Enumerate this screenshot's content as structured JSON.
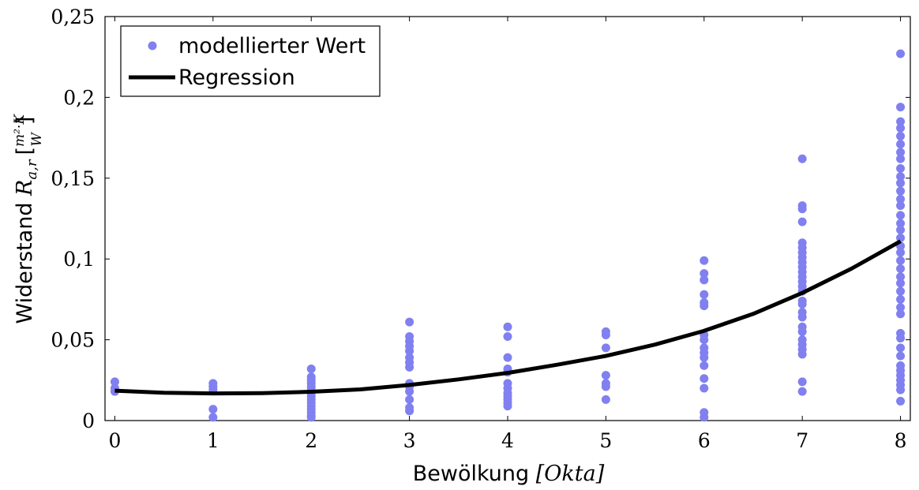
{
  "chart_data": {
    "type": "scatter",
    "xlabel": {
      "text": "Bewölkung ",
      "unit": "[Okta]"
    },
    "ylabel": {
      "text": "Widerstand ",
      "symbol": "R",
      "subscript": "a,r",
      "unit_num": "m²·K",
      "unit_den": "W"
    },
    "xlim": [
      -0.1,
      8.1
    ],
    "ylim": [
      0,
      0.25
    ],
    "x_ticks": [
      {
        "value": 0,
        "label": "0"
      },
      {
        "value": 1,
        "label": "1"
      },
      {
        "value": 2,
        "label": "2"
      },
      {
        "value": 3,
        "label": "3"
      },
      {
        "value": 4,
        "label": "4"
      },
      {
        "value": 5,
        "label": "5"
      },
      {
        "value": 6,
        "label": "6"
      },
      {
        "value": 7,
        "label": "7"
      },
      {
        "value": 8,
        "label": "8"
      }
    ],
    "y_ticks": [
      {
        "value": 0,
        "label": "0"
      },
      {
        "value": 0.05,
        "label": "0,05"
      },
      {
        "value": 0.1,
        "label": "0,1"
      },
      {
        "value": 0.15,
        "label": "0,15"
      },
      {
        "value": 0.2,
        "label": "0,2"
      },
      {
        "value": 0.25,
        "label": "0,25"
      }
    ],
    "grid": false,
    "legend_position": "top-left",
    "legend": [
      {
        "label": "modellierter Wert",
        "marker": "dot"
      },
      {
        "label": "Regression",
        "marker": "line"
      }
    ],
    "colors": {
      "points": "#8080f0",
      "regression": "#000000"
    },
    "series": [
      {
        "name": "modellierter Wert",
        "kind": "scatter",
        "points": [
          {
            "x": 0,
            "y": 0.024
          },
          {
            "x": 0,
            "y": 0.02
          },
          {
            "x": 0,
            "y": 0.018
          },
          {
            "x": 1,
            "y": 0.023
          },
          {
            "x": 1,
            "y": 0.021
          },
          {
            "x": 1,
            "y": 0.019
          },
          {
            "x": 1,
            "y": 0.007
          },
          {
            "x": 1,
            "y": 0.002
          },
          {
            "x": 2,
            "y": 0.032
          },
          {
            "x": 2,
            "y": 0.027
          },
          {
            "x": 2,
            "y": 0.025
          },
          {
            "x": 2,
            "y": 0.023
          },
          {
            "x": 2,
            "y": 0.021
          },
          {
            "x": 2,
            "y": 0.019
          },
          {
            "x": 2,
            "y": 0.017
          },
          {
            "x": 2,
            "y": 0.015
          },
          {
            "x": 2,
            "y": 0.013
          },
          {
            "x": 2,
            "y": 0.011
          },
          {
            "x": 2,
            "y": 0.009
          },
          {
            "x": 2,
            "y": 0.007
          },
          {
            "x": 2,
            "y": 0.005
          },
          {
            "x": 2,
            "y": 0.003
          },
          {
            "x": 2,
            "y": 0.002
          },
          {
            "x": 3,
            "y": 0.061
          },
          {
            "x": 3,
            "y": 0.052
          },
          {
            "x": 3,
            "y": 0.049
          },
          {
            "x": 3,
            "y": 0.046
          },
          {
            "x": 3,
            "y": 0.043
          },
          {
            "x": 3,
            "y": 0.039
          },
          {
            "x": 3,
            "y": 0.036
          },
          {
            "x": 3,
            "y": 0.033
          },
          {
            "x": 3,
            "y": 0.023
          },
          {
            "x": 3,
            "y": 0.021
          },
          {
            "x": 3,
            "y": 0.018
          },
          {
            "x": 3,
            "y": 0.013
          },
          {
            "x": 3,
            "y": 0.008
          },
          {
            "x": 3,
            "y": 0.006
          },
          {
            "x": 4,
            "y": 0.058
          },
          {
            "x": 4,
            "y": 0.052
          },
          {
            "x": 4,
            "y": 0.039
          },
          {
            "x": 4,
            "y": 0.032
          },
          {
            "x": 4,
            "y": 0.03
          },
          {
            "x": 4,
            "y": 0.023
          },
          {
            "x": 4,
            "y": 0.02
          },
          {
            "x": 4,
            "y": 0.017
          },
          {
            "x": 4,
            "y": 0.015
          },
          {
            "x": 4,
            "y": 0.013
          },
          {
            "x": 4,
            "y": 0.011
          },
          {
            "x": 4,
            "y": 0.009
          },
          {
            "x": 5,
            "y": 0.055
          },
          {
            "x": 5,
            "y": 0.053
          },
          {
            "x": 5,
            "y": 0.045
          },
          {
            "x": 5,
            "y": 0.028
          },
          {
            "x": 5,
            "y": 0.023
          },
          {
            "x": 5,
            "y": 0.021
          },
          {
            "x": 5,
            "y": 0.013
          },
          {
            "x": 6,
            "y": 0.099
          },
          {
            "x": 6,
            "y": 0.091
          },
          {
            "x": 6,
            "y": 0.087
          },
          {
            "x": 6,
            "y": 0.078
          },
          {
            "x": 6,
            "y": 0.073
          },
          {
            "x": 6,
            "y": 0.071
          },
          {
            "x": 6,
            "y": 0.053
          },
          {
            "x": 6,
            "y": 0.05
          },
          {
            "x": 6,
            "y": 0.045
          },
          {
            "x": 6,
            "y": 0.042
          },
          {
            "x": 6,
            "y": 0.039
          },
          {
            "x": 6,
            "y": 0.034
          },
          {
            "x": 6,
            "y": 0.026
          },
          {
            "x": 6,
            "y": 0.02
          },
          {
            "x": 6,
            "y": 0.005
          },
          {
            "x": 6,
            "y": 0.002
          },
          {
            "x": 7,
            "y": 0.162
          },
          {
            "x": 7,
            "y": 0.133
          },
          {
            "x": 7,
            "y": 0.131
          },
          {
            "x": 7,
            "y": 0.123
          },
          {
            "x": 7,
            "y": 0.11
          },
          {
            "x": 7,
            "y": 0.107
          },
          {
            "x": 7,
            "y": 0.104
          },
          {
            "x": 7,
            "y": 0.101
          },
          {
            "x": 7,
            "y": 0.098
          },
          {
            "x": 7,
            "y": 0.095
          },
          {
            "x": 7,
            "y": 0.092
          },
          {
            "x": 7,
            "y": 0.089
          },
          {
            "x": 7,
            "y": 0.086
          },
          {
            "x": 7,
            "y": 0.083
          },
          {
            "x": 7,
            "y": 0.08
          },
          {
            "x": 7,
            "y": 0.074
          },
          {
            "x": 7,
            "y": 0.072
          },
          {
            "x": 7,
            "y": 0.067
          },
          {
            "x": 7,
            "y": 0.064
          },
          {
            "x": 7,
            "y": 0.058
          },
          {
            "x": 7,
            "y": 0.055
          },
          {
            "x": 7,
            "y": 0.05
          },
          {
            "x": 7,
            "y": 0.047
          },
          {
            "x": 7,
            "y": 0.044
          },
          {
            "x": 7,
            "y": 0.041
          },
          {
            "x": 7,
            "y": 0.024
          },
          {
            "x": 7,
            "y": 0.018
          },
          {
            "x": 8,
            "y": 0.227
          },
          {
            "x": 8,
            "y": 0.194
          },
          {
            "x": 8,
            "y": 0.185
          },
          {
            "x": 8,
            "y": 0.181
          },
          {
            "x": 8,
            "y": 0.176
          },
          {
            "x": 8,
            "y": 0.171
          },
          {
            "x": 8,
            "y": 0.166
          },
          {
            "x": 8,
            "y": 0.162
          },
          {
            "x": 8,
            "y": 0.156
          },
          {
            "x": 8,
            "y": 0.151
          },
          {
            "x": 8,
            "y": 0.147
          },
          {
            "x": 8,
            "y": 0.142
          },
          {
            "x": 8,
            "y": 0.137
          },
          {
            "x": 8,
            "y": 0.133
          },
          {
            "x": 8,
            "y": 0.127
          },
          {
            "x": 8,
            "y": 0.122
          },
          {
            "x": 8,
            "y": 0.118
          },
          {
            "x": 8,
            "y": 0.113
          },
          {
            "x": 8,
            "y": 0.108
          },
          {
            "x": 8,
            "y": 0.104
          },
          {
            "x": 8,
            "y": 0.099
          },
          {
            "x": 8,
            "y": 0.094
          },
          {
            "x": 8,
            "y": 0.089
          },
          {
            "x": 8,
            "y": 0.085
          },
          {
            "x": 8,
            "y": 0.08
          },
          {
            "x": 8,
            "y": 0.075
          },
          {
            "x": 8,
            "y": 0.07
          },
          {
            "x": 8,
            "y": 0.066
          },
          {
            "x": 8,
            "y": 0.054
          },
          {
            "x": 8,
            "y": 0.051
          },
          {
            "x": 8,
            "y": 0.045
          },
          {
            "x": 8,
            "y": 0.04
          },
          {
            "x": 8,
            "y": 0.034
          },
          {
            "x": 8,
            "y": 0.031
          },
          {
            "x": 8,
            "y": 0.028
          },
          {
            "x": 8,
            "y": 0.025
          },
          {
            "x": 8,
            "y": 0.022
          },
          {
            "x": 8,
            "y": 0.019
          },
          {
            "x": 8,
            "y": 0.012
          }
        ]
      },
      {
        "name": "Regression",
        "kind": "line",
        "points": [
          {
            "x": 0,
            "y": 0.0185
          },
          {
            "x": 0.5,
            "y": 0.0172
          },
          {
            "x": 1,
            "y": 0.0168
          },
          {
            "x": 1.5,
            "y": 0.017
          },
          {
            "x": 2,
            "y": 0.0178
          },
          {
            "x": 2.5,
            "y": 0.0193
          },
          {
            "x": 3,
            "y": 0.022
          },
          {
            "x": 3.5,
            "y": 0.0255
          },
          {
            "x": 4,
            "y": 0.0295
          },
          {
            "x": 4.5,
            "y": 0.0345
          },
          {
            "x": 5,
            "y": 0.04
          },
          {
            "x": 5.5,
            "y": 0.047
          },
          {
            "x": 6,
            "y": 0.0555
          },
          {
            "x": 6.5,
            "y": 0.066
          },
          {
            "x": 7,
            "y": 0.079
          },
          {
            "x": 7.5,
            "y": 0.094
          },
          {
            "x": 8,
            "y": 0.111
          }
        ]
      }
    ]
  }
}
